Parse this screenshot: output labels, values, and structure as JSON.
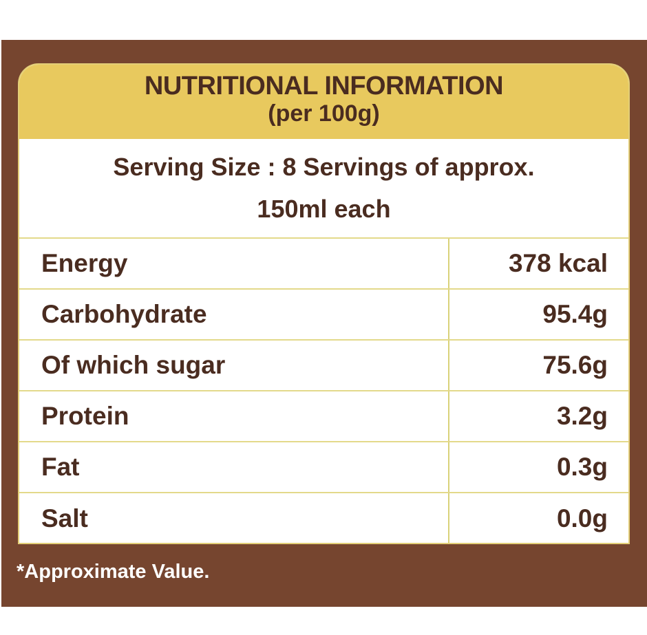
{
  "header": {
    "title": "NUTRITIONAL INFORMATION",
    "subtitle": "(per 100g)"
  },
  "serving": {
    "line1": "Serving Size : 8 Servings of approx.",
    "line2": "150ml each"
  },
  "rows": [
    {
      "name": "Energy",
      "value": "378 kcal"
    },
    {
      "name": "Carbohydrate",
      "value": "95.4g"
    },
    {
      "name": "Of which sugar",
      "value": "75.6g"
    },
    {
      "name": "Protein",
      "value": "3.2g"
    },
    {
      "name": "Fat",
      "value": "0.3g"
    },
    {
      "name": "Salt",
      "value": "0.0g"
    }
  ],
  "footnote": "*Approximate Value.",
  "colors": {
    "frame": "#76452f",
    "header": "#e8c95e",
    "text": "#4a2c20"
  }
}
